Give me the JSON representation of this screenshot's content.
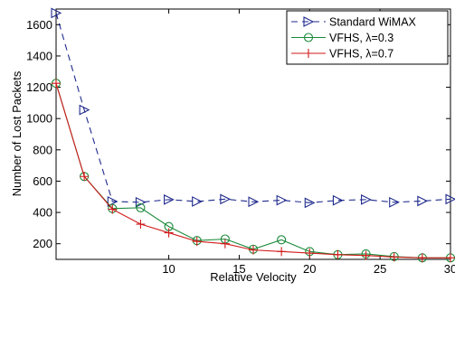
{
  "chart_data": {
    "type": "line",
    "xlabel": "Relative Velocity",
    "ylabel": "Number of Lost Packets",
    "xlim": [
      2,
      30
    ],
    "ylim": [
      100,
      1700
    ],
    "xticks": [
      10,
      15,
      20,
      25,
      30
    ],
    "yticks": [
      200,
      400,
      600,
      800,
      1000,
      1200,
      1400,
      1600
    ],
    "grid": false,
    "legend_position": "top-right",
    "series": [
      {
        "name": "Standard WiMAX",
        "color": "#1f2a8c",
        "line_style": "dashed",
        "marker": "triangle-right",
        "x": [
          2,
          4,
          6,
          8,
          10,
          12,
          14,
          16,
          18,
          20,
          22,
          24,
          26,
          28,
          30
        ],
        "y": [
          1675,
          1055,
          470,
          465,
          482,
          470,
          485,
          468,
          478,
          462,
          477,
          482,
          465,
          473,
          485
        ]
      },
      {
        "name": "VFHS, λ=0.3",
        "color": "#1a8a3a",
        "line_style": "solid",
        "marker": "circle",
        "x": [
          2,
          4,
          6,
          8,
          10,
          12,
          14,
          16,
          18,
          20,
          22,
          24,
          26,
          28,
          30
        ],
        "y": [
          1225,
          630,
          425,
          430,
          310,
          220,
          230,
          165,
          225,
          150,
          130,
          135,
          118,
          110,
          110
        ]
      },
      {
        "name": "VFHS, λ=0.7",
        "color": "#d11a1a",
        "line_style": "solid",
        "marker": "plus",
        "x": [
          2,
          4,
          6,
          8,
          10,
          12,
          14,
          16,
          18,
          20,
          22,
          24,
          26,
          28,
          30
        ],
        "y": [
          1225,
          630,
          420,
          325,
          270,
          215,
          200,
          160,
          150,
          140,
          130,
          125,
          115,
          110,
          110
        ]
      }
    ]
  }
}
